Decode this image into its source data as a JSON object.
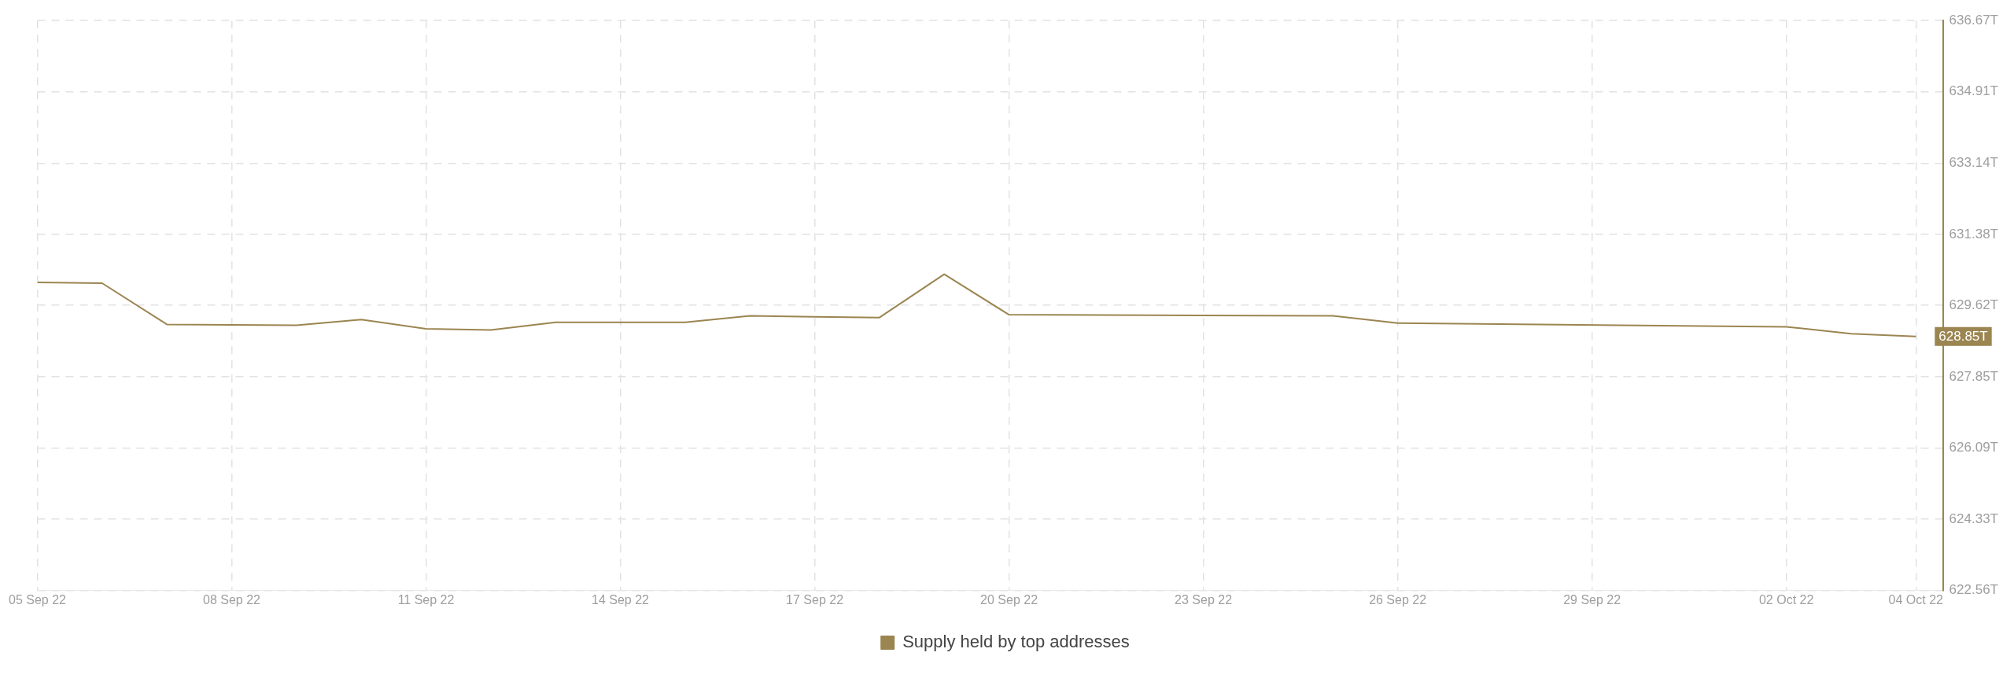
{
  "chart_data": {
    "type": "line",
    "x": [
      "--09-05",
      "--09-06",
      "--09-07",
      "--09-09",
      "--09-10",
      "--09-11",
      "--09-12",
      "--09-13",
      "--09-15",
      "--09-16",
      "--09-18",
      "--09-19",
      "--09-20",
      "--09-25",
      "--09-26",
      "--10-02",
      "--10-03",
      "--10-04"
    ],
    "series": [
      {
        "name": "Supply held by top addresses",
        "color": "#9b8550",
        "values": [
          630.19,
          630.17,
          629.15,
          629.13,
          629.27,
          629.04,
          629.01,
          629.2,
          629.2,
          629.36,
          629.32,
          630.39,
          629.39,
          629.36,
          629.18,
          629.09,
          628.92,
          628.85
        ]
      }
    ],
    "xlim": [
      "--09-05",
      "--10-04T10:00"
    ],
    "xticks": [
      {
        "value": "--09-05",
        "label": "05 Sep 22"
      },
      {
        "value": "--09-08",
        "label": "08 Sep 22"
      },
      {
        "value": "--09-11",
        "label": "11 Sep 22"
      },
      {
        "value": "--09-14",
        "label": "14 Sep 22"
      },
      {
        "value": "--09-17",
        "label": "17 Sep 22"
      },
      {
        "value": "--09-20",
        "label": "20 Sep 22"
      },
      {
        "value": "--09-23",
        "label": "23 Sep 22"
      },
      {
        "value": "--09-26",
        "label": "26 Sep 22"
      },
      {
        "value": "--09-29",
        "label": "29 Sep 22"
      },
      {
        "value": "--10-02",
        "label": "02 Oct 22"
      },
      {
        "value": "--10-04",
        "label": "04 Oct 22"
      }
    ],
    "ylim": [
      622.56,
      636.67
    ],
    "yticks": [
      {
        "value": 622.56,
        "label": "622.56T"
      },
      {
        "value": 624.33,
        "label": "624.33T"
      },
      {
        "value": 626.09,
        "label": "626.09T"
      },
      {
        "value": 627.85,
        "label": "627.85T"
      },
      {
        "value": 629.62,
        "label": "629.62T"
      },
      {
        "value": 631.38,
        "label": "631.38T"
      },
      {
        "value": 633.14,
        "label": "633.14T"
      },
      {
        "value": 634.91,
        "label": "634.91T"
      },
      {
        "value": 636.67,
        "label": "636.67T"
      }
    ],
    "annotations": [
      {
        "text": "628.85T",
        "x": "--10-04",
        "y": 628.85
      }
    ],
    "grid": true,
    "legend": "bottom",
    "marker": "none",
    "line_style": "solid"
  }
}
